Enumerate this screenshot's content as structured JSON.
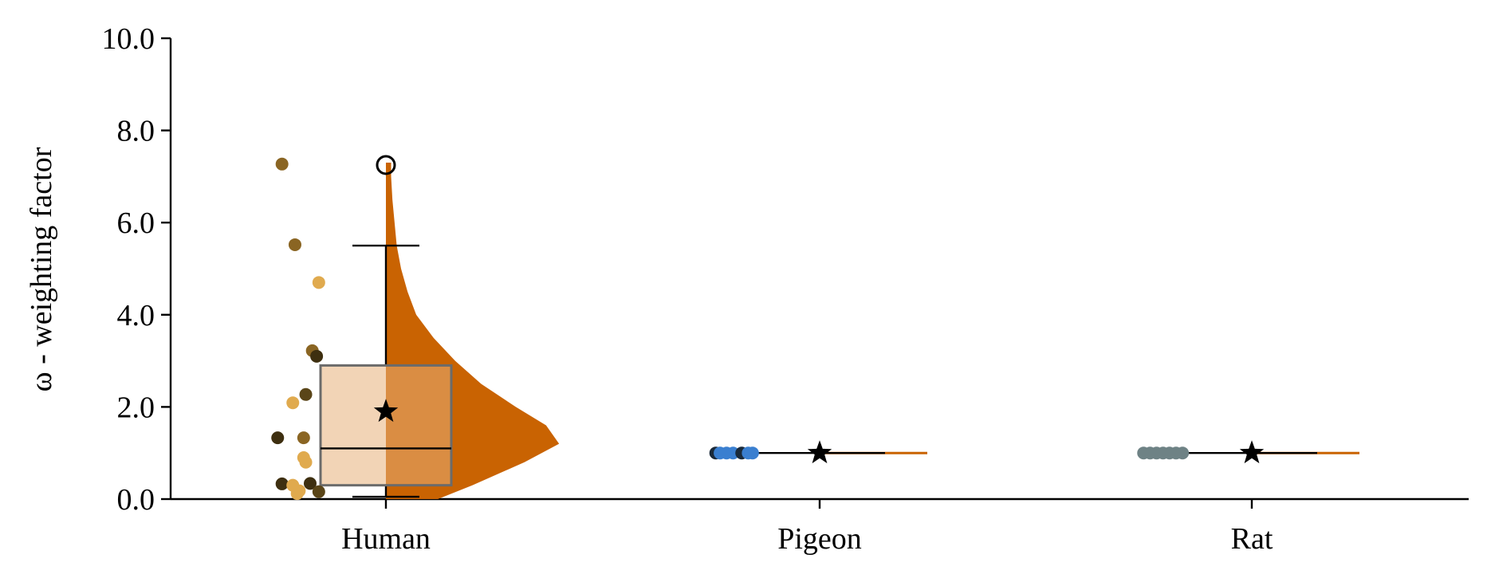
{
  "chart_data": {
    "type": "box-violin-strip",
    "title": "",
    "xlabel": "",
    "ylabel": "ω - weighting factor",
    "ylim": [
      0,
      10
    ],
    "yticks": [
      "0.0",
      "2.0",
      "4.0",
      "6.0",
      "8.0",
      "10.0"
    ],
    "grid": false,
    "categories": [
      "Human",
      "Pigeon",
      "Rat"
    ],
    "groups": [
      {
        "name": "Human",
        "box": {
          "q1": 0.3,
          "median": 1.1,
          "q3": 2.9,
          "whisker_low": 0.05,
          "whisker_high": 5.5
        },
        "mean": 1.9,
        "outliers": [
          7.25
        ],
        "violin": [
          [
            0.0,
            0.12
          ],
          [
            0.3,
            0.2
          ],
          [
            0.8,
            0.32
          ],
          [
            1.2,
            0.4
          ],
          [
            1.6,
            0.37
          ],
          [
            2.0,
            0.3
          ],
          [
            2.5,
            0.22
          ],
          [
            3.0,
            0.16
          ],
          [
            3.5,
            0.11
          ],
          [
            4.0,
            0.07
          ],
          [
            4.5,
            0.05
          ],
          [
            5.0,
            0.035
          ],
          [
            5.5,
            0.025
          ],
          [
            6.0,
            0.02
          ],
          [
            6.5,
            0.015
          ],
          [
            7.0,
            0.012
          ],
          [
            7.3,
            0.012
          ]
        ],
        "points": [
          {
            "x": -0.24,
            "y": 7.27,
            "c": "#8a6523"
          },
          {
            "x": -0.21,
            "y": 5.52,
            "c": "#8a6523"
          },
          {
            "x": -0.155,
            "y": 4.7,
            "c": "#e0aa4e"
          },
          {
            "x": -0.17,
            "y": 3.22,
            "c": "#8a6523"
          },
          {
            "x": -0.16,
            "y": 3.1,
            "c": "#3e2f10"
          },
          {
            "x": -0.185,
            "y": 2.27,
            "c": "#5a4518"
          },
          {
            "x": -0.215,
            "y": 2.09,
            "c": "#e0aa4e"
          },
          {
            "x": -0.25,
            "y": 1.33,
            "c": "#3e2f10"
          },
          {
            "x": -0.19,
            "y": 1.33,
            "c": "#8a6523"
          },
          {
            "x": -0.19,
            "y": 0.9,
            "c": "#e0aa4e"
          },
          {
            "x": -0.185,
            "y": 0.8,
            "c": "#e0aa4e"
          },
          {
            "x": -0.24,
            "y": 0.33,
            "c": "#3e2f10"
          },
          {
            "x": -0.215,
            "y": 0.3,
            "c": "#e0aa4e"
          },
          {
            "x": -0.2,
            "y": 0.18,
            "c": "#e0aa4e"
          },
          {
            "x": -0.175,
            "y": 0.34,
            "c": "#3e2f10"
          },
          {
            "x": -0.155,
            "y": 0.16,
            "c": "#5a4518"
          },
          {
            "x": -0.205,
            "y": 0.12,
            "c": "#e0aa4e"
          }
        ]
      },
      {
        "name": "Pigeon",
        "box": {
          "q1": 1.0,
          "median": 1.0,
          "q3": 1.0,
          "whisker_low": 1.0,
          "whisker_high": 1.0
        },
        "mean": 1.0,
        "outliers": [],
        "violin": [],
        "points": [
          {
            "x": -0.24,
            "y": 1.0,
            "c": "#1a2a3a"
          },
          {
            "x": -0.23,
            "y": 1.0,
            "c": "#3a7fd0"
          },
          {
            "x": -0.215,
            "y": 1.0,
            "c": "#3a7fd0"
          },
          {
            "x": -0.2,
            "y": 1.0,
            "c": "#3a7fd0"
          },
          {
            "x": -0.18,
            "y": 1.0,
            "c": "#1a2a3a"
          },
          {
            "x": -0.165,
            "y": 1.0,
            "c": "#3a7fd0"
          },
          {
            "x": -0.155,
            "y": 1.0,
            "c": "#3a7fd0"
          }
        ]
      },
      {
        "name": "Rat",
        "box": {
          "q1": 1.0,
          "median": 1.0,
          "q3": 1.0,
          "whisker_low": 1.0,
          "whisker_high": 1.0
        },
        "mean": 1.0,
        "outliers": [],
        "violin": [],
        "points": [
          {
            "x": -0.25,
            "y": 1.0,
            "c": "#6e8285"
          },
          {
            "x": -0.235,
            "y": 1.0,
            "c": "#6e8285"
          },
          {
            "x": -0.22,
            "y": 1.0,
            "c": "#6e8285"
          },
          {
            "x": -0.205,
            "y": 1.0,
            "c": "#6e8285"
          },
          {
            "x": -0.19,
            "y": 1.0,
            "c": "#6e8285"
          },
          {
            "x": -0.175,
            "y": 1.0,
            "c": "#6e8285"
          },
          {
            "x": -0.16,
            "y": 1.0,
            "c": "#6e8285"
          }
        ]
      }
    ],
    "colors": {
      "box_fill": "#e7b07a",
      "box_edge": "#6b6b6b",
      "violin": "#c96302",
      "axis": "#000000"
    }
  }
}
